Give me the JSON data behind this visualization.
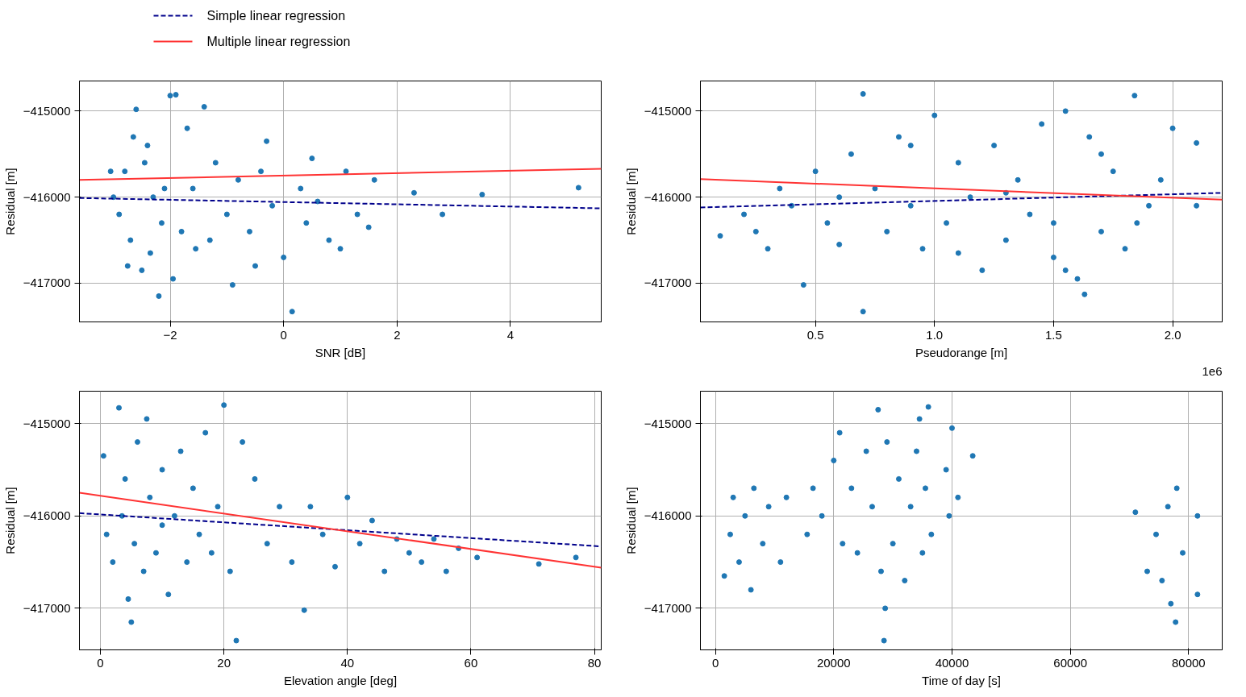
{
  "chart_data": [
    {
      "type": "scatter",
      "xlabel": "SNR [dB]",
      "ylabel": "Residual [m]",
      "xlim": [
        -3.6,
        5.6
      ],
      "xticks": [
        {
          "value": -2,
          "label": "−2"
        },
        0,
        2,
        4
      ],
      "ylim": [
        -417450,
        -414650
      ],
      "yticks": [
        {
          "value": -417000,
          "label": "−417000"
        },
        {
          "value": -416000,
          "label": "−416000"
        },
        {
          "value": -415000,
          "label": "−415000"
        }
      ],
      "grid": true,
      "legend": "top left",
      "marker": "circle",
      "series": [
        {
          "color": "#1f77b4",
          "x": [
            -2.9,
            -2.8,
            -2.7,
            -2.6,
            -2.5,
            -2.4,
            -2.3,
            -2.2,
            -2.1,
            -2.0,
            -1.9,
            -1.95,
            -1.8,
            -1.7,
            -1.6,
            -1.4,
            -1.3,
            -1.2,
            -1.0,
            -0.9,
            -0.8,
            -0.6,
            -0.4,
            -0.3,
            -0.2,
            0.0,
            0.15,
            0.3,
            0.4,
            0.6,
            0.8,
            1.0,
            1.1,
            1.3,
            1.5,
            1.6,
            2.3,
            2.8,
            3.5,
            5.2,
            -3.0,
            -2.75,
            -2.45,
            -2.15,
            -1.55,
            -0.5,
            0.5,
            -3.05,
            -2.65,
            -2.35
          ],
          "values": [
            -416200,
            -415700,
            -416500,
            -414980,
            -416850,
            -415400,
            -416000,
            -417150,
            -415900,
            -414820,
            -414810,
            -416950,
            -416400,
            -415200,
            -415900,
            -414950,
            -416500,
            -415600,
            -416200,
            -417020,
            -415800,
            -416400,
            -415700,
            -415350,
            -416100,
            -416700,
            -417330,
            -415900,
            -416300,
            -416050,
            -416500,
            -416600,
            -415700,
            -416200,
            -416350,
            -415800,
            -415950,
            -416200,
            -415970,
            -415890,
            -416000,
            -416800,
            -415600,
            -416300,
            -416600,
            -416800,
            -415550,
            -415700,
            -415300,
            -416650
          ]
        },
        {
          "type": "line",
          "name": "Simple linear regression",
          "color": "#00008b",
          "line_style": "dashed",
          "marker": "none",
          "x": [
            -3.6,
            5.6
          ],
          "values": [
            -416010,
            -416130
          ]
        },
        {
          "type": "line",
          "name": "Multiple linear regression",
          "color": "#ff3333",
          "line_style": "solid",
          "marker": "none",
          "x": [
            -3.6,
            5.6
          ],
          "values": [
            -415800,
            -415670
          ]
        }
      ]
    },
    {
      "type": "scatter",
      "xlabel": "Pseudorange [m]",
      "ylabel": "Residual [m]",
      "annotations": [
        "1e6"
      ],
      "xlim": [
        0.017,
        2.208
      ],
      "xticks": [
        0.5,
        {
          "value": 1,
          "label": "1.0"
        },
        1.5,
        {
          "value": 2,
          "label": "2.0"
        }
      ],
      "ylim": [
        -417450,
        -414650
      ],
      "yticks": [
        {
          "value": -417000,
          "label": "−417000"
        },
        {
          "value": -416000,
          "label": "−416000"
        },
        {
          "value": -415000,
          "label": "−415000"
        }
      ],
      "grid": true,
      "marker": "circle",
      "series": [
        {
          "color": "#1f77b4",
          "x": [
            0.1,
            0.2,
            0.3,
            0.35,
            0.45,
            0.5,
            0.55,
            0.6,
            0.65,
            0.7,
            0.7,
            0.75,
            0.8,
            0.85,
            0.9,
            0.95,
            1.0,
            1.05,
            1.1,
            1.15,
            1.2,
            1.25,
            1.3,
            1.35,
            1.4,
            1.45,
            1.5,
            1.55,
            1.55,
            1.6,
            1.63,
            1.65,
            1.7,
            1.75,
            1.8,
            1.84,
            1.9,
            2.0,
            2.1,
            2.1,
            0.25,
            0.4,
            0.6,
            0.9,
            1.1,
            1.3,
            1.5,
            1.7,
            1.85,
            1.95
          ],
          "values": [
            -416450,
            -416200,
            -416600,
            -415900,
            -417020,
            -415700,
            -416300,
            -416550,
            -415500,
            -414800,
            -417330,
            -415900,
            -416400,
            -415300,
            -416100,
            -416600,
            -415050,
            -416300,
            -415600,
            -416000,
            -416850,
            -415400,
            -416500,
            -415800,
            -416200,
            -415150,
            -416700,
            -415000,
            -416850,
            -416950,
            -417130,
            -415300,
            -416400,
            -415700,
            -416600,
            -414820,
            -416100,
            -415200,
            -415370,
            -416100,
            -416400,
            -416100,
            -416000,
            -415400,
            -416650,
            -415950,
            -416300,
            -415500,
            -416300,
            -415800
          ]
        },
        {
          "type": "line",
          "color": "#00008b",
          "line_style": "dashed",
          "marker": "none",
          "x": [
            0.017,
            2.208
          ],
          "values": [
            -416120,
            -415950
          ]
        },
        {
          "type": "line",
          "color": "#ff3333",
          "line_style": "solid",
          "marker": "none",
          "x": [
            0.017,
            2.208
          ],
          "values": [
            -415790,
            -416030
          ]
        }
      ]
    },
    {
      "type": "scatter",
      "xlabel": "Elevation angle [deg]",
      "ylabel": "Residual [m]",
      "xlim": [
        -3.4,
        81.1
      ],
      "xticks": [
        0,
        20,
        40,
        60,
        80
      ],
      "ylim": [
        -417450,
        -414650
      ],
      "yticks": [
        {
          "value": -417000,
          "label": "−417000"
        },
        {
          "value": -416000,
          "label": "−416000"
        },
        {
          "value": -415000,
          "label": "−415000"
        }
      ],
      "grid": true,
      "marker": "circle",
      "series": [
        {
          "color": "#1f77b4",
          "x": [
            0.5,
            1,
            2,
            3,
            3.5,
            4,
            4.5,
            5,
            5.5,
            6,
            7,
            7.5,
            8,
            9,
            10,
            11,
            12,
            13,
            14,
            15,
            16,
            17,
            18,
            19,
            20,
            21,
            22,
            23,
            25,
            27,
            29,
            31,
            33,
            34,
            36,
            38,
            40,
            42,
            44,
            46,
            48,
            50,
            52,
            54,
            56,
            58,
            61,
            71,
            77,
            10
          ],
          "values": [
            -415350,
            -416200,
            -416500,
            -414830,
            -416000,
            -415600,
            -416900,
            -417150,
            -416300,
            -415200,
            -416600,
            -414950,
            -415800,
            -416400,
            -415500,
            -416850,
            -416000,
            -415300,
            -416500,
            -415700,
            -416200,
            -415100,
            -416400,
            -415900,
            -414800,
            -416600,
            -417350,
            -415200,
            -415600,
            -416300,
            -415900,
            -416500,
            -417020,
            -415900,
            -416200,
            -416550,
            -415800,
            -416300,
            -416050,
            -416600,
            -416250,
            -416400,
            -416500,
            -416250,
            -416600,
            -416350,
            -416450,
            -416520,
            -416450,
            -416100
          ]
        },
        {
          "type": "line",
          "color": "#00008b",
          "line_style": "dashed",
          "marker": "none",
          "x": [
            -3.4,
            81.1
          ],
          "values": [
            -415970,
            -416330
          ]
        },
        {
          "type": "line",
          "color": "#ff3333",
          "line_style": "solid",
          "marker": "none",
          "x": [
            -3.4,
            81.1
          ],
          "values": [
            -415750,
            -416560
          ]
        }
      ]
    },
    {
      "type": "scatter",
      "xlabel": "Time of day [s]",
      "ylabel": "Residual [m]",
      "xlim": [
        -2540,
        85680
      ],
      "xticks": [
        0,
        20000,
        40000,
        60000,
        80000
      ],
      "ylim": [
        -417450,
        -414650
      ],
      "yticks": [
        {
          "value": -417000,
          "label": "−417000"
        },
        {
          "value": -416000,
          "label": "−416000"
        },
        {
          "value": -415000,
          "label": "−415000"
        }
      ],
      "grid": true,
      "marker": "circle",
      "series": [
        {
          "color": "#1f77b4",
          "x": [
            1500,
            2500,
            3000,
            4000,
            5000,
            6000,
            6500,
            8000,
            9000,
            11000,
            12000,
            15500,
            16500,
            18000,
            20000,
            21000,
            21500,
            23000,
            24000,
            25500,
            26500,
            27500,
            28000,
            28500,
            28700,
            29000,
            30000,
            31000,
            32000,
            33000,
            34000,
            34500,
            35000,
            35500,
            36000,
            36500,
            39000,
            39500,
            40000,
            41000,
            43500,
            71000,
            73000,
            74500,
            75500,
            76500,
            77000,
            77800,
            78000,
            79000,
            81500,
            81500
          ],
          "values": [
            -416650,
            -416200,
            -415800,
            -416500,
            -416000,
            -416800,
            -415700,
            -416300,
            -415900,
            -416500,
            -415800,
            -416200,
            -415700,
            -416000,
            -415400,
            -415100,
            -416300,
            -415700,
            -416400,
            -415300,
            -415900,
            -414850,
            -416600,
            -417350,
            -417000,
            -415200,
            -416300,
            -415600,
            -416700,
            -415900,
            -415300,
            -414950,
            -416400,
            -415700,
            -414820,
            -416200,
            -415500,
            -416000,
            -415050,
            -415800,
            -415350,
            -415960,
            -416600,
            -416200,
            -416700,
            -415900,
            -416950,
            -417150,
            -415700,
            -416400,
            -416000,
            -416850
          ]
        }
      ]
    }
  ]
}
